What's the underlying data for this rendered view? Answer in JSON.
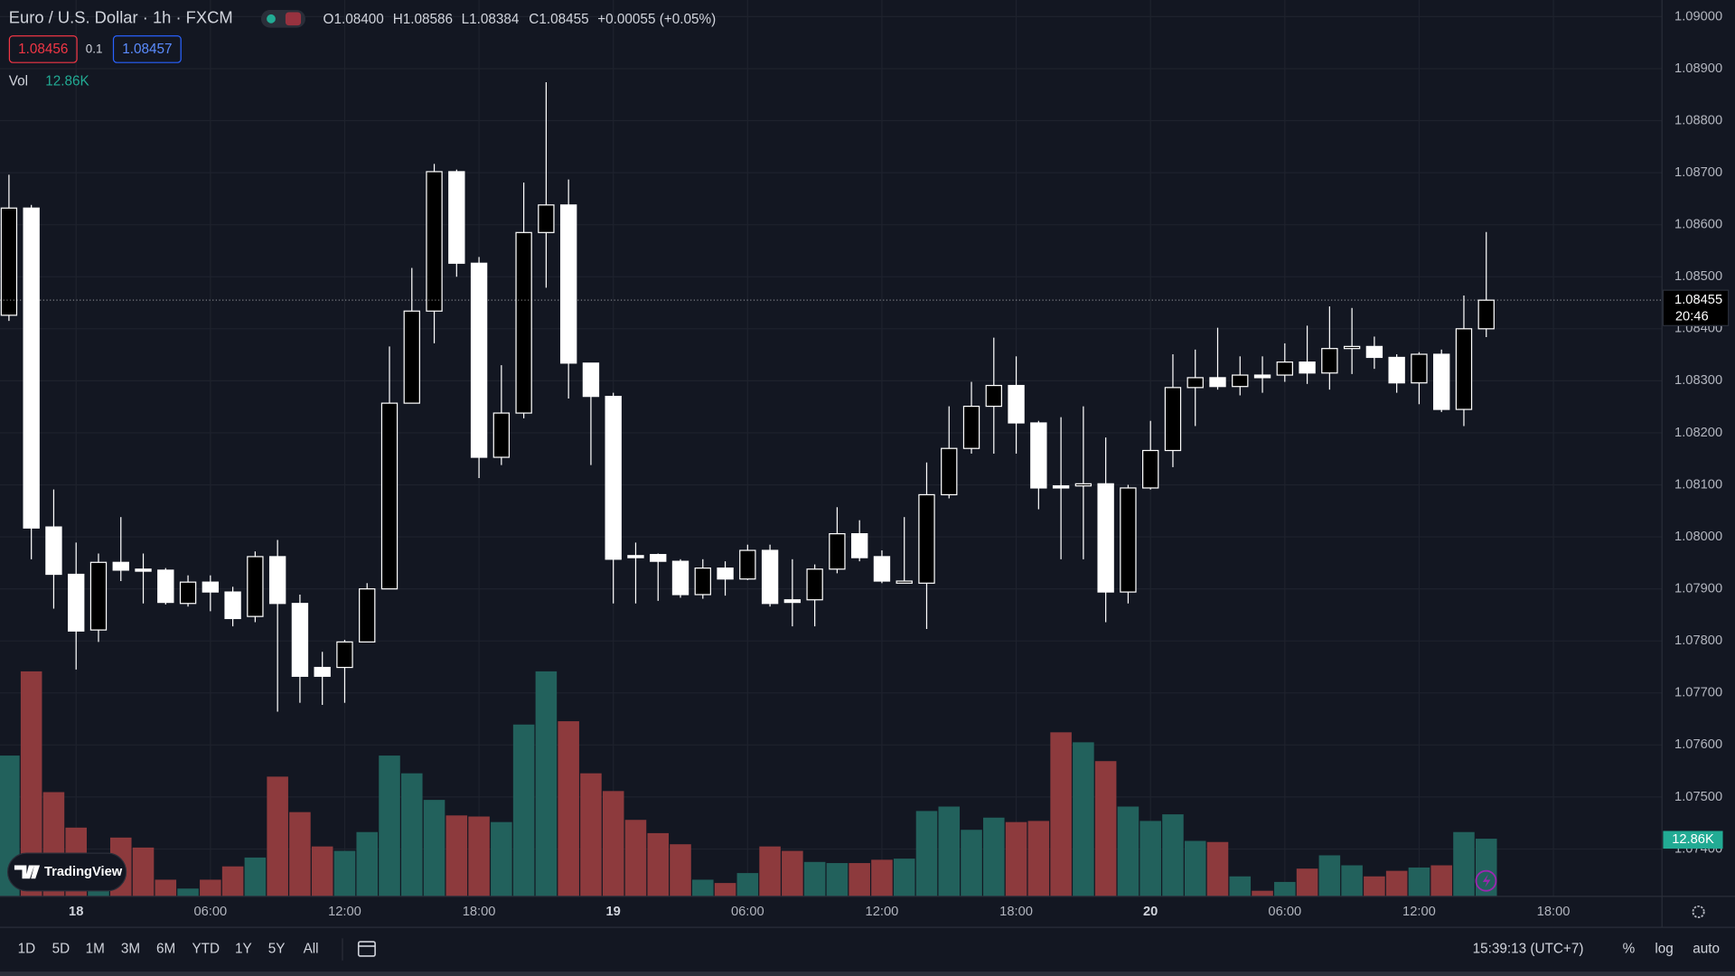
{
  "header": {
    "symbol": "Euro / U.S. Dollar · 1h · FXCM",
    "ohlc": [
      "O1.08400",
      "H1.08586",
      "L1.08384",
      "C1.08455",
      "+0.00055 (+0.05%)"
    ]
  },
  "quote": {
    "bid": "1.08456",
    "spread": "0.1",
    "ask": "1.08457"
  },
  "volume_legend": {
    "label": "Vol",
    "value": "12.86K"
  },
  "logo": "TradingView",
  "toolbar": {
    "ranges": [
      "1D",
      "5D",
      "1M",
      "3M",
      "6M",
      "YTD",
      "1Y",
      "5Y",
      "All"
    ],
    "clock": "15:39:13 (UTC+7)",
    "options": [
      "%",
      "log",
      "auto"
    ]
  },
  "chart_data": {
    "type": "candlestick",
    "open": [
      1.08426,
      1.08632,
      1.08019,
      1.07928,
      1.07821,
      1.07951,
      1.07938,
      1.07936,
      1.07872,
      1.07913,
      1.07894,
      1.07847,
      1.07962,
      1.07872,
      1.07749,
      1.07749,
      1.07798,
      1.079,
      1.08257,
      1.08434,
      1.08702,
      1.08526,
      1.08153,
      1.08238,
      1.08585,
      1.08638,
      1.08334,
      1.0827,
      1.07964,
      1.07966,
      1.07953,
      1.07889,
      1.0794,
      1.07919,
      1.07974,
      1.07879,
      1.07879,
      1.07938,
      1.08006,
      1.07962,
      1.07911,
      1.07911,
      1.08081,
      1.0817,
      1.08251,
      1.08291,
      1.08219,
      1.08098,
      1.08098,
      1.08102,
      1.07894,
      1.08094,
      1.08166,
      1.08287,
      1.08306,
      1.08289,
      1.08311,
      1.08311,
      1.08336,
      1.08315,
      1.08362,
      1.08366,
      1.08345,
      1.08296,
      1.08351,
      1.08245,
      1.084
    ],
    "high": [
      1.08696,
      1.08638,
      1.08091,
      1.07989,
      1.07968,
      1.08038,
      1.07968,
      1.0794,
      1.07926,
      1.07926,
      1.07904,
      1.07972,
      1.07994,
      1.07889,
      1.07779,
      1.07802,
      1.07911,
      1.08366,
      1.08517,
      1.08717,
      1.08706,
      1.08538,
      1.0833,
      1.08681,
      1.08874,
      1.08687,
      1.08334,
      1.08277,
      1.07989,
      1.07968,
      1.07957,
      1.07957,
      1.07953,
      1.07985,
      1.07985,
      1.07957,
      1.07947,
      1.08057,
      1.08032,
      1.07974,
      1.08038,
      1.08143,
      1.08251,
      1.08298,
      1.08383,
      1.08347,
      1.08223,
      1.0823,
      1.08251,
      1.08191,
      1.081,
      1.08223,
      1.08351,
      1.0836,
      1.08402,
      1.08347,
      1.08347,
      1.08372,
      1.08406,
      1.08443,
      1.0844,
      1.08385,
      1.08351,
      1.08355,
      1.0836,
      1.08464,
      1.08586
    ],
    "low": [
      1.08415,
      1.07957,
      1.07862,
      1.07745,
      1.07798,
      1.07915,
      1.07872,
      1.0787,
      1.07866,
      1.07857,
      1.07828,
      1.07836,
      1.07664,
      1.07681,
      1.07677,
      1.07681,
      1.07798,
      1.079,
      1.08257,
      1.08372,
      1.085,
      1.08113,
      1.08138,
      1.08228,
      1.08479,
      1.08266,
      1.08138,
      1.07872,
      1.07872,
      1.07877,
      1.07883,
      1.07881,
      1.07887,
      1.07917,
      1.07866,
      1.07828,
      1.07828,
      1.0793,
      1.07953,
      1.07911,
      1.07911,
      1.07823,
      1.08074,
      1.0816,
      1.0816,
      1.0816,
      1.08053,
      1.07957,
      1.07957,
      1.07836,
      1.07872,
      1.08091,
      1.08134,
      1.08213,
      1.08283,
      1.08272,
      1.08277,
      1.08298,
      1.08294,
      1.08283,
      1.08313,
      1.08323,
      1.08277,
      1.08255,
      1.0824,
      1.08213,
      1.08384
    ],
    "close": [
      1.08632,
      1.08017,
      1.07928,
      1.07819,
      1.07951,
      1.07936,
      1.07934,
      1.07874,
      1.07913,
      1.07894,
      1.07843,
      1.07962,
      1.07872,
      1.07732,
      1.07732,
      1.07798,
      1.079,
      1.08257,
      1.08434,
      1.08702,
      1.08526,
      1.08153,
      1.08238,
      1.08585,
      1.08638,
      1.08334,
      1.0827,
      1.07957,
      1.0796,
      1.07953,
      1.07889,
      1.0794,
      1.07919,
      1.07974,
      1.07872,
      1.07874,
      1.07938,
      1.08006,
      1.0796,
      1.07915,
      1.07915,
      1.08081,
      1.0817,
      1.08251,
      1.08291,
      1.08219,
      1.08094,
      1.08094,
      1.08102,
      1.07894,
      1.08094,
      1.08166,
      1.08287,
      1.08306,
      1.08289,
      1.08311,
      1.08306,
      1.08336,
      1.08315,
      1.08362,
      1.08366,
      1.08345,
      1.08296,
      1.08351,
      1.08245,
      1.084,
      1.08455
    ],
    "volume": [
      31.41,
      50.2,
      23.25,
      15.33,
      6.18,
      13.11,
      10.88,
      3.71,
      1.73,
      3.71,
      6.68,
      8.66,
      26.71,
      18.79,
      11.13,
      10.14,
      14.34,
      31.41,
      27.45,
      21.52,
      18.05,
      17.81,
      16.57,
      38.33,
      50.2,
      39.07,
      27.45,
      23.49,
      17.06,
      14.1,
      11.62,
      3.71,
      2.97,
      5.19,
      11.13,
      10.14,
      7.67,
      7.42,
      7.42,
      8.16,
      8.41,
      19.04,
      20.03,
      14.84,
      17.56,
      16.57,
      16.82,
      36.6,
      34.37,
      30.17,
      20.03,
      16.82,
      18.3,
      12.37,
      12.12,
      4.45,
      1.24,
      3.21,
      6.18,
      9.15,
      6.92,
      4.45,
      5.69,
      6.43,
      6.92,
      14.34,
      12.86
    ],
    "countdown": "20:46",
    "xlim": [
      -0.4,
      73.85
    ],
    "xticks": [
      {
        "value": 3,
        "label": "18"
      },
      {
        "value": 9,
        "label": "06:00"
      },
      {
        "value": 15,
        "label": "12:00"
      },
      {
        "value": 21,
        "label": "18:00"
      },
      {
        "value": 27,
        "label": "19"
      },
      {
        "value": 33,
        "label": "06:00"
      },
      {
        "value": 39,
        "label": "12:00"
      },
      {
        "value": 45,
        "label": "18:00"
      },
      {
        "value": 51,
        "label": "20"
      },
      {
        "value": 57,
        "label": "06:00"
      },
      {
        "value": 63,
        "label": "12:00"
      },
      {
        "value": 69,
        "label": "18:00"
      }
    ],
    "ylim": [
      1.07309,
      1.09032
    ],
    "yticks": [
      {
        "value": 1.09,
        "label": "1.09000"
      },
      {
        "value": 1.089,
        "label": "1.08900"
      },
      {
        "value": 1.088,
        "label": "1.08800"
      },
      {
        "value": 1.087,
        "label": "1.08700"
      },
      {
        "value": 1.086,
        "label": "1.08600"
      },
      {
        "value": 1.085,
        "label": "1.08500"
      },
      {
        "value": 1.084,
        "label": "1.08400"
      },
      {
        "value": 1.083,
        "label": "1.08300"
      },
      {
        "value": 1.082,
        "label": "1.08200"
      },
      {
        "value": 1.081,
        "label": "1.08100"
      },
      {
        "value": 1.08,
        "label": "1.08000"
      },
      {
        "value": 1.079,
        "label": "1.07900"
      },
      {
        "value": 1.078,
        "label": "1.07800"
      },
      {
        "value": 1.077,
        "label": "1.07700"
      },
      {
        "value": 1.076,
        "label": "1.07600"
      },
      {
        "value": 1.075,
        "label": "1.07500"
      },
      {
        "value": 1.074,
        "label": "1.07400"
      }
    ],
    "volume_ylim": [
      0,
      60
    ],
    "grid": true,
    "up_body_color": "#000000",
    "down_body_color": "#ffffff",
    "wick_color": "#ffffff",
    "up_volume_color": "#22615c",
    "down_volume_color": "#8d3a3d"
  }
}
